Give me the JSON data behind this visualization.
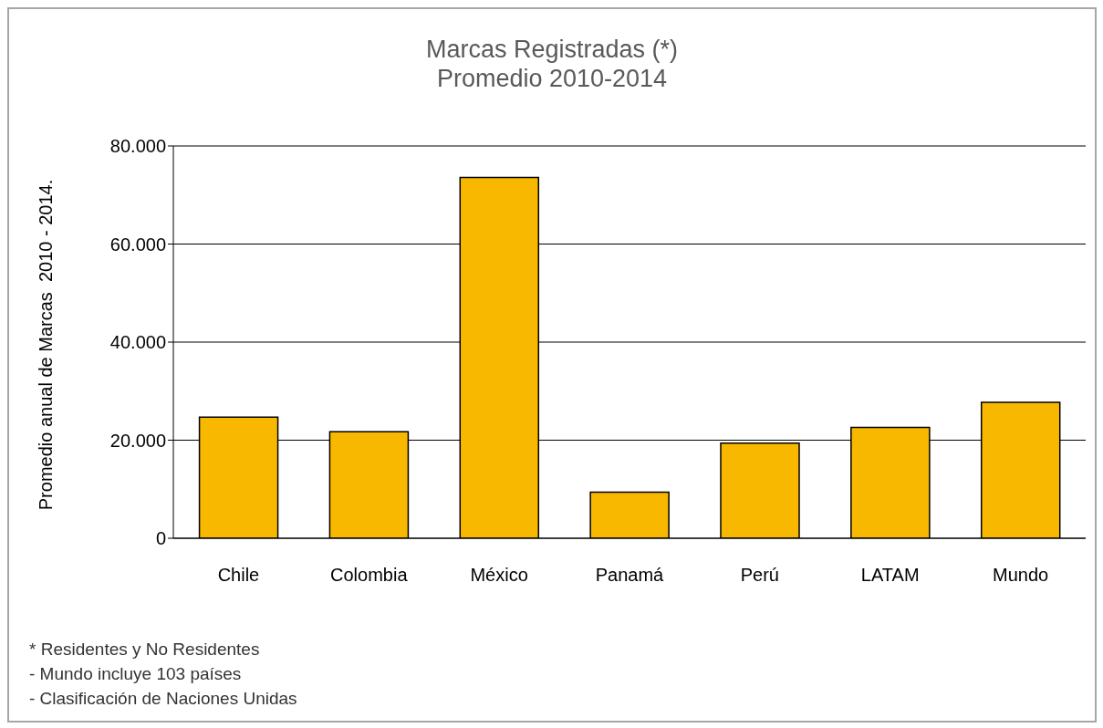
{
  "chart_data": {
    "type": "bar",
    "title": "Marcas Registradas (*)",
    "subtitle": "Promedio 2010-2014",
    "ylabel": "Promedio anual de Marcas  2010 - 2014.",
    "categories": [
      "Chile",
      "Colombia",
      "México",
      "Panamá",
      "Perú",
      "LATAM",
      "Mundo"
    ],
    "values": [
      24700,
      21700,
      73600,
      9400,
      19400,
      22600,
      27700
    ],
    "color": "#f9b800",
    "ylim": [
      0,
      80000
    ],
    "yticks": [
      0,
      {
        "value": 20000,
        "label": "20.000"
      },
      {
        "value": 40000,
        "label": "40.000"
      },
      {
        "value": 60000,
        "label": "60.000"
      },
      {
        "value": 80000,
        "label": "80.000"
      }
    ],
    "grid": "y",
    "annotations": [
      "* Residentes y No Residentes",
      "- Mundo incluye  103 países",
      "- Clasificación de Naciones Unidas"
    ]
  }
}
